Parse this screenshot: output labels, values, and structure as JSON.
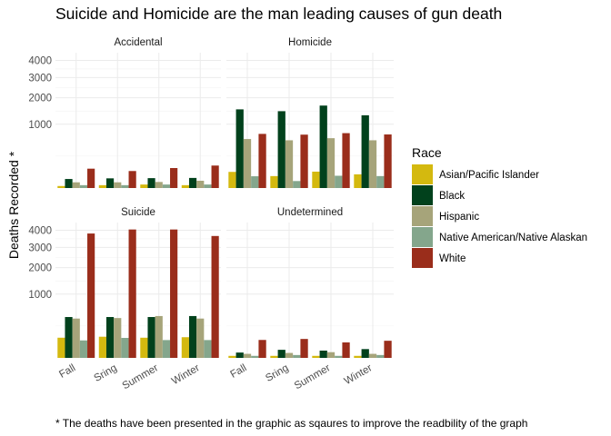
{
  "title": "Suicide and Homicide are the man leading causes of gun death",
  "caption": "* The deaths have been presented in the graphic as sqaures to improve the readbility of the graph",
  "chart_data": {
    "type": "bar",
    "ylabel": "Deaths Recorded *",
    "xlabel": "",
    "y_scale": "sqrt",
    "yticks": [
      1000,
      2000,
      3000,
      4000
    ],
    "ylim": [
      0,
      4500
    ],
    "grid": true,
    "categories": [
      "Fall",
      "Sring",
      "Summer",
      "Winter"
    ],
    "legend": {
      "title": "Race",
      "position": "right",
      "entries": [
        {
          "name": "Asian/Pacific Islander",
          "color": "#D4B90F"
        },
        {
          "name": "Black",
          "color": "#01411C"
        },
        {
          "name": "Hispanic",
          "color": "#A6A47A"
        },
        {
          "name": "Native American/Native Alaskan",
          "color": "#84A68C"
        },
        {
          "name": "White",
          "color": "#9A2D1B"
        }
      ]
    },
    "facets": [
      {
        "name": "Accidental",
        "series": [
          {
            "name": "Asian/Pacific Islander",
            "values": [
              1,
              2,
              3,
              2
            ]
          },
          {
            "name": "Black",
            "values": [
              20,
              23,
              24,
              25
            ]
          },
          {
            "name": "Hispanic",
            "values": [
              8,
              8,
              9,
              13
            ]
          },
          {
            "name": "Native American/Native Alaskan",
            "values": [
              2,
              2,
              3,
              3
            ]
          },
          {
            "name": "White",
            "values": [
              92,
              71,
              98,
              124
            ]
          }
        ]
      },
      {
        "name": "Homicide",
        "series": [
          {
            "name": "Asian/Pacific Islander",
            "values": [
              64,
              35,
              66,
              46
            ]
          },
          {
            "name": "Black",
            "values": [
              1520,
              1450,
              1670,
              1300
            ]
          },
          {
            "name": "Hispanic",
            "values": [
              590,
              560,
              610,
              560
            ]
          },
          {
            "name": "Native American/Native Alaskan",
            "values": [
              34,
              12,
              37,
              35
            ]
          },
          {
            "name": "White",
            "values": [
              720,
              700,
              740,
              705
            ]
          }
        ]
      },
      {
        "name": "Suicide",
        "series": [
          {
            "name": "Asian/Pacific Islander",
            "values": [
              100,
              110,
              100,
              105
            ]
          },
          {
            "name": "Black",
            "values": [
              410,
              410,
              410,
              430
            ]
          },
          {
            "name": "Hispanic",
            "values": [
              380,
              390,
              430,
              380
            ]
          },
          {
            "name": "Native American/Native Alaskan",
            "values": [
              75,
              98,
              78,
              78
            ]
          },
          {
            "name": "White",
            "values": [
              3800,
              4050,
              4050,
              3650
            ]
          }
        ]
      },
      {
        "name": "Undetermined",
        "series": [
          {
            "name": "Asian/Pacific Islander",
            "values": [
              1,
              1,
              1,
              1
            ]
          },
          {
            "name": "Black",
            "values": [
              7,
              16,
              13,
              19
            ]
          },
          {
            "name": "Hispanic",
            "values": [
              4,
              6,
              8,
              4
            ]
          },
          {
            "name": "Native American/Native Alaskan",
            "values": [
              1,
              2,
              1,
              2
            ]
          },
          {
            "name": "White",
            "values": [
              79,
              88,
              59,
              72
            ]
          }
        ]
      }
    ]
  }
}
